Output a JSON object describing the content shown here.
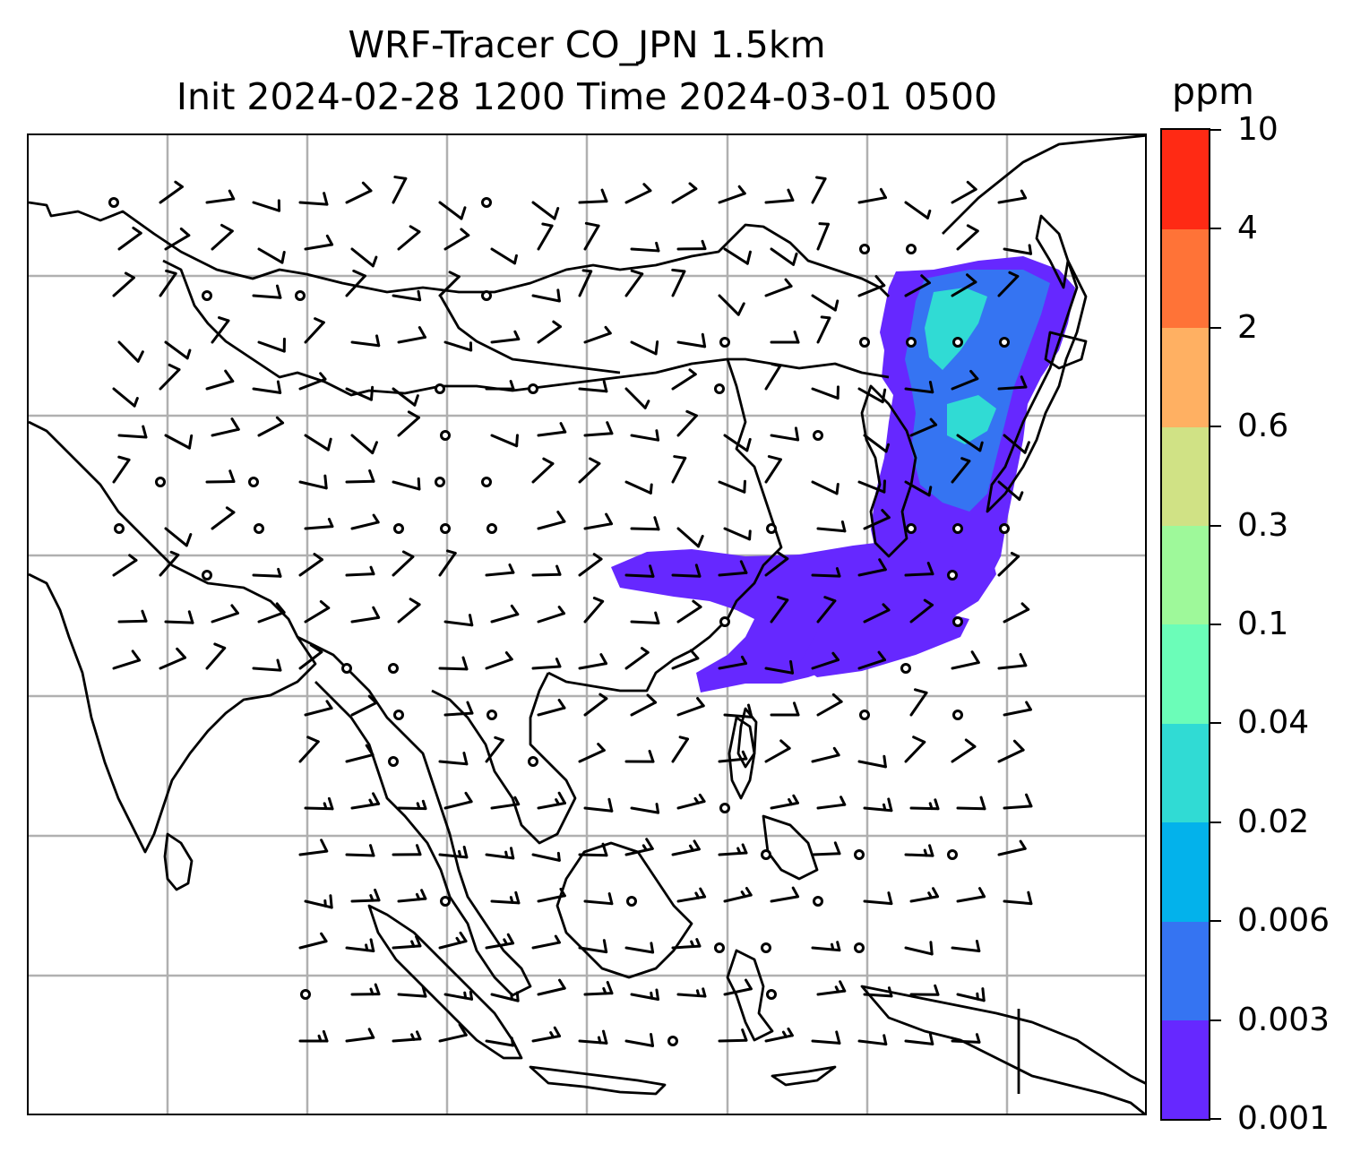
{
  "title": {
    "line1": "WRF-Tracer CO_JPN 1.5km",
    "line2": "Init 2024-02-28 1200 Time 2024-03-01 0500"
  },
  "colorbar": {
    "unit": "ppm",
    "levels": [
      "0.001",
      "0.003",
      "0.006",
      "0.02",
      "0.04",
      "0.1",
      "0.3",
      "0.6",
      "2",
      "4",
      "10"
    ],
    "colors": [
      "#6628ff",
      "#3574f2",
      "#03b2eb",
      "#30dbd4",
      "#6bfdb8",
      "#9ef99a",
      "#d0e285",
      "#ffb062",
      "#ff7337",
      "#ff2a14"
    ]
  },
  "map": {
    "gridlines": true,
    "gridline_color": "#b0b0b0",
    "coastline_color": "#000000",
    "wind_barb_color": "#000000",
    "plume_color_dominant": "#6628ff"
  }
}
